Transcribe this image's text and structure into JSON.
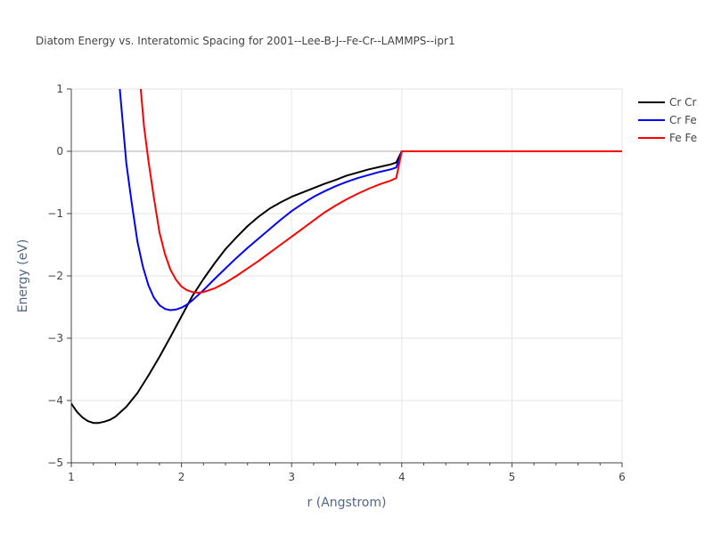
{
  "chart_data": {
    "type": "line",
    "title": "Diatom Energy vs. Interatomic Spacing for 2001--Lee-B-J--Fe-Cr--LAMMPS--ipr1",
    "xlabel": "r (Angstrom)",
    "ylabel": "Energy (eV)",
    "xlim": [
      1,
      6
    ],
    "ylim": [
      -5,
      1
    ],
    "x_ticks": [
      "1",
      "2",
      "3",
      "4",
      "5",
      "6"
    ],
    "y_ticks": [
      "1",
      "0",
      "−1",
      "−2",
      "−3",
      "−4",
      "−5"
    ],
    "grid": true,
    "legend_position": "top-right",
    "series": [
      {
        "name": "Cr Cr",
        "color": "#000000",
        "x": [
          1.0,
          1.05,
          1.1,
          1.15,
          1.2,
          1.25,
          1.3,
          1.35,
          1.4,
          1.5,
          1.6,
          1.7,
          1.8,
          1.9,
          2.0,
          2.1,
          2.2,
          2.3,
          2.4,
          2.5,
          2.6,
          2.7,
          2.8,
          2.9,
          3.0,
          3.1,
          3.2,
          3.3,
          3.4,
          3.5,
          3.6,
          3.7,
          3.8,
          3.9,
          3.95,
          4.0,
          4.5,
          5.0,
          5.5,
          6.0
        ],
        "y": [
          -4.05,
          -4.18,
          -4.27,
          -4.33,
          -4.36,
          -4.36,
          -4.34,
          -4.31,
          -4.26,
          -4.1,
          -3.88,
          -3.6,
          -3.3,
          -2.98,
          -2.65,
          -2.32,
          -2.05,
          -1.8,
          -1.57,
          -1.38,
          -1.2,
          -1.05,
          -0.92,
          -0.82,
          -0.73,
          -0.66,
          -0.59,
          -0.52,
          -0.46,
          -0.39,
          -0.34,
          -0.29,
          -0.25,
          -0.21,
          -0.18,
          0.0,
          0.0,
          0.0,
          0.0,
          0.0
        ]
      },
      {
        "name": "Cr Fe",
        "color": "#0000ff",
        "x": [
          1.44,
          1.47,
          1.5,
          1.55,
          1.6,
          1.65,
          1.7,
          1.75,
          1.8,
          1.85,
          1.9,
          1.95,
          2.0,
          2.05,
          2.1,
          2.15,
          2.2,
          2.3,
          2.4,
          2.5,
          2.6,
          2.7,
          2.8,
          2.9,
          3.0,
          3.1,
          3.2,
          3.3,
          3.4,
          3.5,
          3.6,
          3.7,
          3.8,
          3.9,
          3.95,
          4.0,
          4.5,
          5.0,
          5.5,
          6.0
        ],
        "y": [
          1.0,
          0.4,
          -0.2,
          -0.85,
          -1.45,
          -1.85,
          -2.15,
          -2.35,
          -2.47,
          -2.53,
          -2.55,
          -2.54,
          -2.51,
          -2.46,
          -2.39,
          -2.31,
          -2.23,
          -2.05,
          -1.88,
          -1.71,
          -1.55,
          -1.4,
          -1.25,
          -1.1,
          -0.96,
          -0.84,
          -0.73,
          -0.64,
          -0.56,
          -0.49,
          -0.43,
          -0.38,
          -0.33,
          -0.29,
          -0.26,
          0.0,
          0.0,
          0.0,
          0.0,
          0.0
        ]
      },
      {
        "name": "Fe Fe",
        "color": "#ff0000",
        "x": [
          1.63,
          1.66,
          1.7,
          1.75,
          1.8,
          1.85,
          1.9,
          1.95,
          2.0,
          2.05,
          2.1,
          2.15,
          2.2,
          2.25,
          2.3,
          2.4,
          2.5,
          2.6,
          2.7,
          2.8,
          2.9,
          3.0,
          3.1,
          3.2,
          3.3,
          3.4,
          3.5,
          3.6,
          3.7,
          3.8,
          3.9,
          3.95,
          4.0,
          4.5,
          5.0,
          5.5,
          6.0
        ],
        "y": [
          1.0,
          0.4,
          -0.15,
          -0.75,
          -1.3,
          -1.65,
          -1.9,
          -2.06,
          -2.17,
          -2.23,
          -2.26,
          -2.27,
          -2.26,
          -2.23,
          -2.2,
          -2.11,
          -2.0,
          -1.88,
          -1.76,
          -1.63,
          -1.5,
          -1.37,
          -1.24,
          -1.11,
          -0.98,
          -0.87,
          -0.77,
          -0.68,
          -0.6,
          -0.53,
          -0.47,
          -0.43,
          0.0,
          0.0,
          0.0,
          0.0,
          0.0
        ]
      }
    ]
  }
}
